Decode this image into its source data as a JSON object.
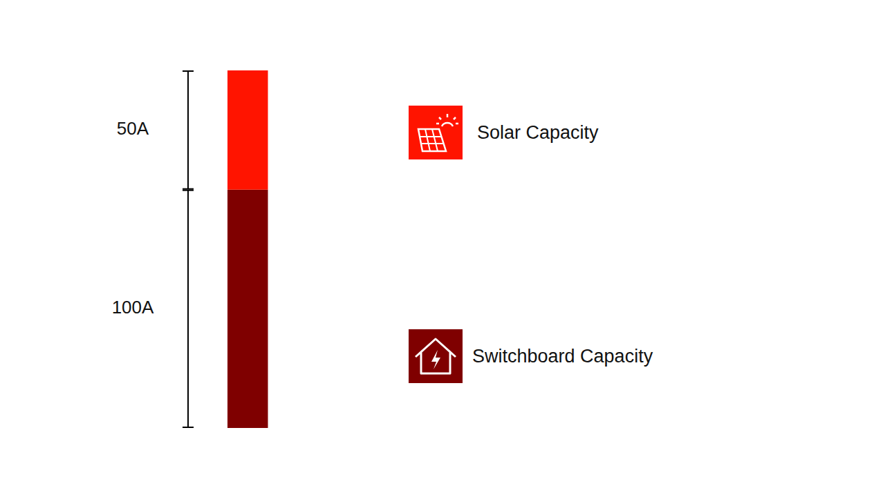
{
  "chart_data": {
    "type": "bar",
    "stacked": true,
    "categories": [
      null
    ],
    "series": [
      {
        "name": "Switchboard Capacity",
        "color": "#7f0000",
        "values": [
          100
        ],
        "value_labels": [
          "100A"
        ]
      },
      {
        "name": "Solar Capacity",
        "color": "#ff1400",
        "values": [
          50
        ],
        "value_labels": [
          "50A"
        ]
      }
    ],
    "ylim": [
      0,
      150
    ],
    "data_labels": true,
    "tick_labels": false,
    "legend": "right"
  }
}
